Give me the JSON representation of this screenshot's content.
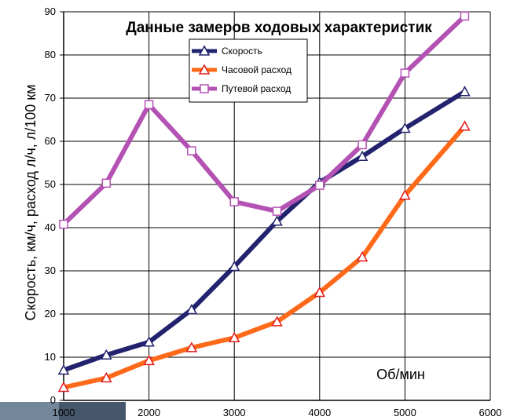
{
  "chart_data": {
    "type": "line",
    "title": "Данные замеров ходовых характеристик",
    "xlabel": "",
    "ylabel": "Скорость,   км/ч, расход л/ч, л/100 км",
    "x_unit_label": "Об/мин",
    "xlim": [
      1000,
      6000
    ],
    "ylim": [
      0,
      90
    ],
    "x_ticks": [
      "1000",
      "2000",
      "3000",
      "4000",
      "5000",
      "6000"
    ],
    "y_ticks": [
      "0",
      "10",
      "20",
      "30",
      "40",
      "50",
      "60",
      "70",
      "80",
      "90"
    ],
    "grid": true,
    "legend_position": "top-center",
    "series": [
      {
        "name": "Скорость",
        "color": "#22226e",
        "marker": "triangle-white",
        "x": [
          1000,
          1500,
          2000,
          2500,
          3000,
          3500,
          4000,
          4500,
          5000,
          5700
        ],
        "y": [
          7,
          10.5,
          13.5,
          21,
          31,
          41.5,
          50.5,
          56.5,
          63,
          71.5
        ]
      },
      {
        "name": "Часовой расход",
        "color": "#ff6a1a",
        "marker": "triangle-red",
        "x": [
          1000,
          1500,
          2000,
          2500,
          3000,
          3500,
          4000,
          4500,
          5000,
          5700
        ],
        "y": [
          3,
          5.2,
          9.2,
          12.2,
          14.5,
          18.2,
          25,
          33.2,
          47.5,
          63.5
        ]
      },
      {
        "name": "Путевой расход",
        "color": "#b452b4",
        "marker": "square-white",
        "x": [
          1000,
          1500,
          2000,
          2500,
          3000,
          3500,
          4000,
          4500,
          5000,
          5700
        ],
        "y": [
          40.8,
          50.3,
          68.5,
          57.8,
          46,
          43.8,
          49.8,
          59.2,
          75.8,
          89
        ]
      }
    ]
  }
}
